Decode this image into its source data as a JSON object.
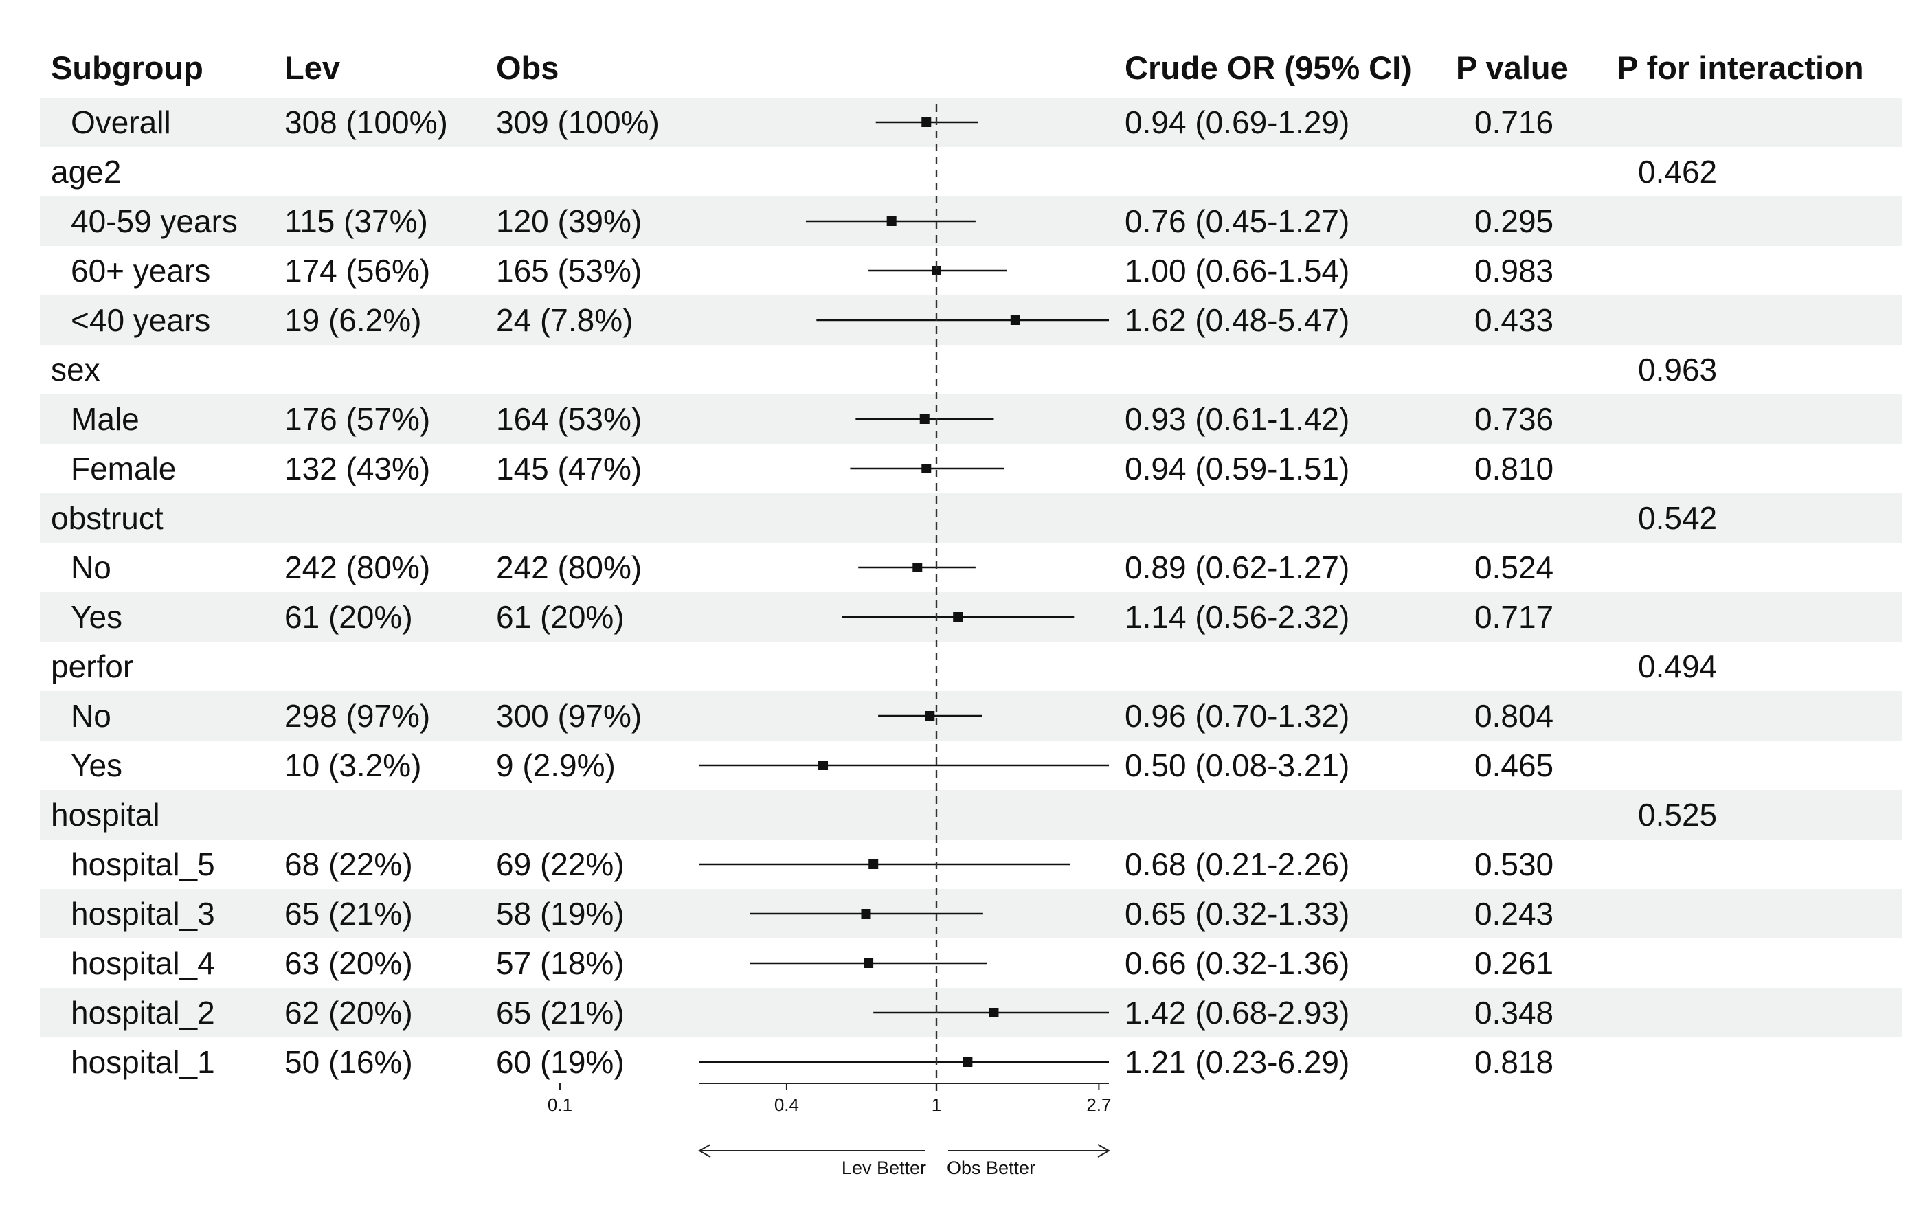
{
  "chart_data": {
    "type": "forest",
    "scale": "log",
    "reference_line": 1,
    "columns": {
      "subgroup": "Subgroup",
      "lev": "Lev",
      "obs": "Obs",
      "estimate": "Crude OR (95% CI)",
      "p_value": "P value",
      "p_interaction": "P for interaction"
    },
    "rows": [
      {
        "label": "Overall",
        "level": 1,
        "shaded": true,
        "lev": "308 (100%)",
        "obs": "309 (100%)",
        "ci_text": "0.94 (0.69-1.29)",
        "p": "0.716",
        "p_int": "",
        "or": 0.94,
        "lo": 0.69,
        "hi": 1.29
      },
      {
        "label": "age2",
        "level": 0,
        "shaded": false,
        "lev": "",
        "obs": "",
        "ci_text": "",
        "p": "",
        "p_int": "0.462"
      },
      {
        "label": "40-59 years",
        "level": 1,
        "shaded": true,
        "lev": "115 (37%)",
        "obs": "120 (39%)",
        "ci_text": "0.76 (0.45-1.27)",
        "p": "0.295",
        "p_int": "",
        "or": 0.76,
        "lo": 0.45,
        "hi": 1.27
      },
      {
        "label": "60+ years",
        "level": 1,
        "shaded": false,
        "lev": "174 (56%)",
        "obs": "165 (53%)",
        "ci_text": "1.00 (0.66-1.54)",
        "p": "0.983",
        "p_int": "",
        "or": 1.0,
        "lo": 0.66,
        "hi": 1.54
      },
      {
        "label": "<40 years",
        "level": 1,
        "shaded": true,
        "lev": "19 (6.2%)",
        "obs": "24 (7.8%)",
        "ci_text": "1.62 (0.48-5.47)",
        "p": "0.433",
        "p_int": "",
        "or": 1.62,
        "lo": 0.48,
        "hi": 5.47
      },
      {
        "label": "sex",
        "level": 0,
        "shaded": false,
        "lev": "",
        "obs": "",
        "ci_text": "",
        "p": "",
        "p_int": "0.963"
      },
      {
        "label": "Male",
        "level": 1,
        "shaded": true,
        "lev": "176 (57%)",
        "obs": "164 (53%)",
        "ci_text": "0.93 (0.61-1.42)",
        "p": "0.736",
        "p_int": "",
        "or": 0.93,
        "lo": 0.61,
        "hi": 1.42
      },
      {
        "label": "Female",
        "level": 1,
        "shaded": false,
        "lev": "132 (43%)",
        "obs": "145 (47%)",
        "ci_text": "0.94 (0.59-1.51)",
        "p": "0.810",
        "p_int": "",
        "or": 0.94,
        "lo": 0.59,
        "hi": 1.51
      },
      {
        "label": "obstruct",
        "level": 0,
        "shaded": true,
        "lev": "",
        "obs": "",
        "ci_text": "",
        "p": "",
        "p_int": "0.542"
      },
      {
        "label": "No",
        "level": 1,
        "shaded": false,
        "lev": "242 (80%)",
        "obs": "242 (80%)",
        "ci_text": "0.89 (0.62-1.27)",
        "p": "0.524",
        "p_int": "",
        "or": 0.89,
        "lo": 0.62,
        "hi": 1.27
      },
      {
        "label": "Yes",
        "level": 1,
        "shaded": true,
        "lev": "61 (20%)",
        "obs": "61 (20%)",
        "ci_text": "1.14 (0.56-2.32)",
        "p": "0.717",
        "p_int": "",
        "or": 1.14,
        "lo": 0.56,
        "hi": 2.32
      },
      {
        "label": "perfor",
        "level": 0,
        "shaded": false,
        "lev": "",
        "obs": "",
        "ci_text": "",
        "p": "",
        "p_int": "0.494"
      },
      {
        "label": "No",
        "level": 1,
        "shaded": true,
        "lev": "298 (97%)",
        "obs": "300 (97%)",
        "ci_text": "0.96 (0.70-1.32)",
        "p": "0.804",
        "p_int": "",
        "or": 0.96,
        "lo": 0.7,
        "hi": 1.32
      },
      {
        "label": "Yes",
        "level": 1,
        "shaded": false,
        "lev": "10 (3.2%)",
        "obs": "9 (2.9%)",
        "ci_text": "0.50 (0.08-3.21)",
        "p": "0.465",
        "p_int": "",
        "or": 0.5,
        "lo": 0.08,
        "hi": 3.21
      },
      {
        "label": "hospital",
        "level": 0,
        "shaded": true,
        "lev": "",
        "obs": "",
        "ci_text": "",
        "p": "",
        "p_int": "0.525"
      },
      {
        "label": "hospital_5",
        "level": 1,
        "shaded": false,
        "lev": "68 (22%)",
        "obs": "69 (22%)",
        "ci_text": "0.68 (0.21-2.26)",
        "p": "0.530",
        "p_int": "",
        "or": 0.68,
        "lo": 0.21,
        "hi": 2.26
      },
      {
        "label": "hospital_3",
        "level": 1,
        "shaded": true,
        "lev": "65 (21%)",
        "obs": "58 (19%)",
        "ci_text": "0.65 (0.32-1.33)",
        "p": "0.243",
        "p_int": "",
        "or": 0.65,
        "lo": 0.32,
        "hi": 1.33
      },
      {
        "label": "hospital_4",
        "level": 1,
        "shaded": false,
        "lev": "63 (20%)",
        "obs": "57 (18%)",
        "ci_text": "0.66 (0.32-1.36)",
        "p": "0.261",
        "p_int": "",
        "or": 0.66,
        "lo": 0.32,
        "hi": 1.36
      },
      {
        "label": "hospital_2",
        "level": 1,
        "shaded": true,
        "lev": "62 (20%)",
        "obs": "65 (21%)",
        "ci_text": "1.42 (0.68-2.93)",
        "p": "0.348",
        "p_int": "",
        "or": 1.42,
        "lo": 0.68,
        "hi": 2.93
      },
      {
        "label": "hospital_1",
        "level": 1,
        "shaded": false,
        "lev": "50 (16%)",
        "obs": "60 (19%)",
        "ci_text": "1.21 (0.23-6.29)",
        "p": "0.818",
        "p_int": "",
        "or": 1.21,
        "lo": 0.23,
        "hi": 6.29
      }
    ],
    "x_ticks": [
      0.1,
      0.4,
      1,
      2.7
    ],
    "x_tick_labels": [
      "0.1",
      "0.4",
      "1",
      "2.7"
    ],
    "direction_labels": {
      "left": "Lev Better",
      "right": "Obs Better"
    },
    "colors": {
      "shade": "#eff2f0",
      "ink": "#111111"
    }
  }
}
